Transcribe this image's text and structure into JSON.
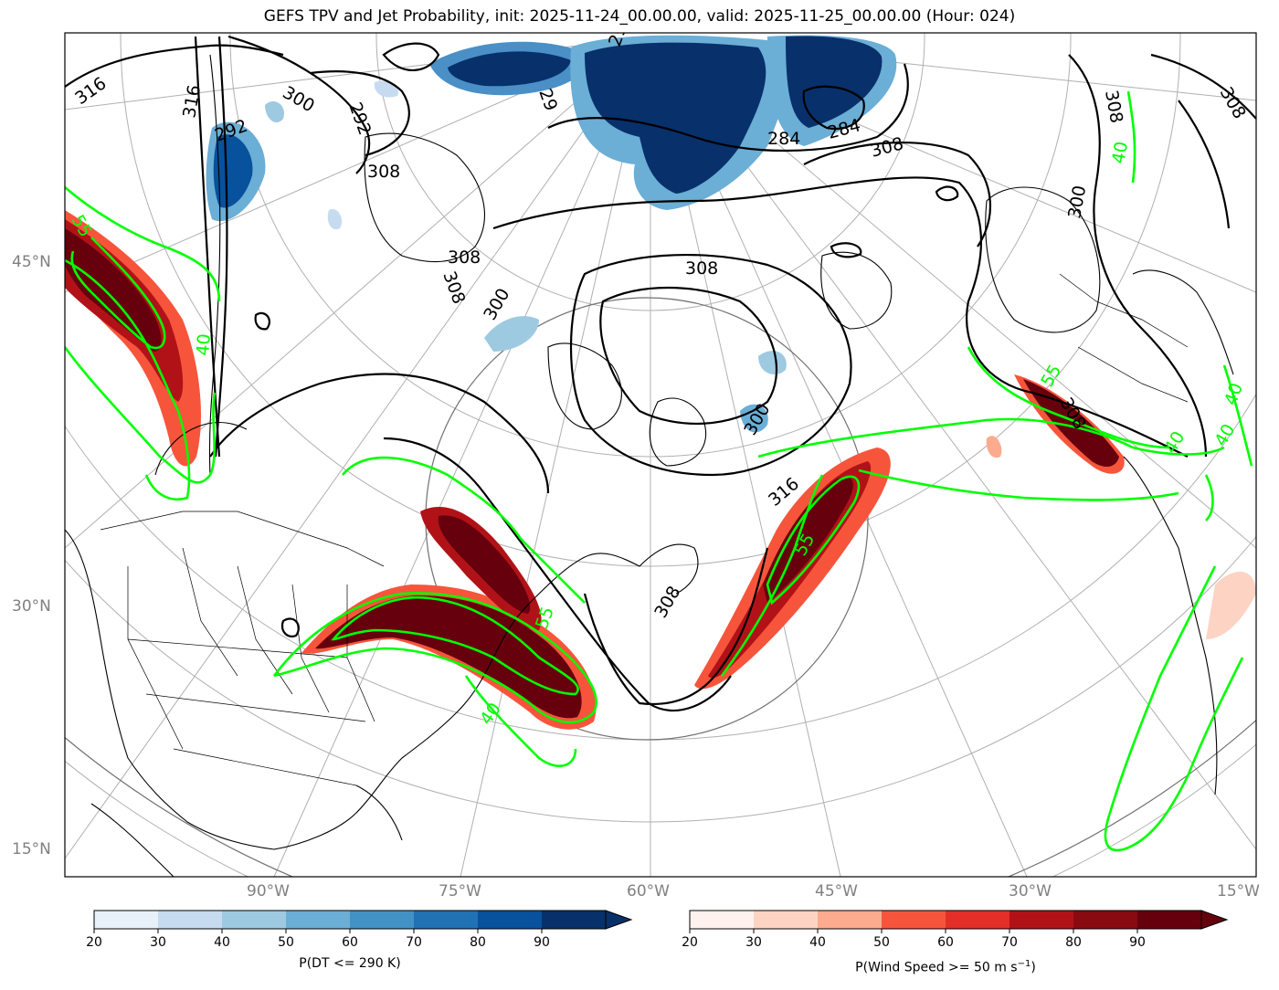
{
  "title": "GEFS TPV and Jet Probability, init: 2025-11-24_00.00.00, valid: 2025-11-25_00.00.00 (Hour: 024)",
  "lat_labels": [
    "45°N",
    "30°N",
    "15°N"
  ],
  "lon_labels": [
    "90°W",
    "75°W",
    "60°W",
    "45°W",
    "30°W",
    "15°W"
  ],
  "theta_contour_labels": [
    "316",
    "316",
    "300",
    "292",
    "29",
    "29",
    "292",
    "308",
    "308",
    "308",
    "308",
    "300",
    "284",
    "284",
    "308",
    "308",
    "300",
    "308",
    "308",
    "316",
    "300",
    "308"
  ],
  "jet_contour_labels": [
    "55",
    "40",
    "40",
    "55",
    "40",
    "55",
    "40",
    "40",
    "40",
    "55"
  ],
  "colorbars": {
    "tpv": {
      "label": "P(DT <= 290 K)",
      "ticks": [
        "20",
        "30",
        "40",
        "50",
        "60",
        "70",
        "80",
        "90"
      ],
      "colors": [
        "#e8f1fa",
        "#c6dbef",
        "#9ecae1",
        "#6baed6",
        "#4292c6",
        "#2171b5",
        "#08519c",
        "#08306b"
      ]
    },
    "jet": {
      "label_prefix": "P(Wind Speed >= 50 m s",
      "label_sup": "−1",
      "label_suffix": ")",
      "ticks": [
        "20",
        "30",
        "40",
        "50",
        "60",
        "70",
        "80",
        "90"
      ],
      "colors": [
        "#fff1ee",
        "#fdd3c4",
        "#fcab8f",
        "#f6553c",
        "#e32f27",
        "#b11218",
        "#8a0a12",
        "#67000d"
      ]
    }
  },
  "colors": {
    "jet_contour": "#00ff00",
    "theta_contour": "#000000",
    "graticule": "#a9a9a9",
    "axis_label": "#808080"
  }
}
